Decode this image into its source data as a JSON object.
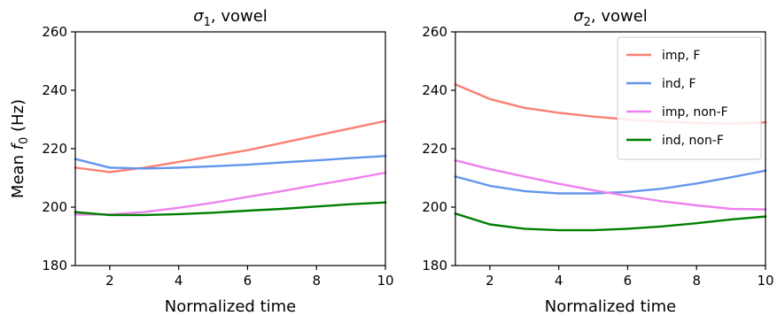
{
  "chart_data": [
    {
      "type": "line",
      "title": "σ1, vowel",
      "title_parts": {
        "sym": "σ",
        "sub": "1",
        "rest": ", vowel"
      },
      "xlabel": "Normalized time",
      "ylabel": "Mean f0 (Hz)",
      "ylabel_parts": {
        "pre": "Mean ",
        "sym": "f",
        "sub": "0",
        "post": " (Hz)"
      },
      "xlim": [
        1,
        10
      ],
      "ylim": [
        180,
        260
      ],
      "xticks": [
        2,
        4,
        6,
        8,
        10
      ],
      "yticks": [
        180,
        200,
        220,
        240,
        260
      ],
      "grid": false,
      "x": [
        1,
        2,
        3,
        4,
        5,
        6,
        7,
        8,
        9,
        10
      ],
      "series": [
        {
          "name": "imp, F",
          "color": "#fa8072",
          "values": [
            213.5,
            212.0,
            213.5,
            215.5,
            217.5,
            219.5,
            222.0,
            224.5,
            227.0,
            229.5
          ]
        },
        {
          "name": "ind, F",
          "color": "#6495ed",
          "values": [
            216.5,
            213.5,
            213.2,
            213.5,
            214.0,
            214.5,
            215.3,
            216.0,
            216.8,
            217.5
          ]
        },
        {
          "name": "imp, non-F",
          "color": "#ee82ee",
          "values": [
            197.5,
            197.5,
            198.3,
            199.8,
            201.5,
            203.5,
            205.5,
            207.6,
            209.6,
            211.8
          ]
        },
        {
          "name": "ind, non-F",
          "color": "#008000",
          "values": [
            198.3,
            197.3,
            197.3,
            197.6,
            198.1,
            198.8,
            199.4,
            200.2,
            201.0,
            201.6
          ]
        }
      ]
    },
    {
      "type": "line",
      "title": "σ2, vowel",
      "title_parts": {
        "sym": "σ",
        "sub": "2",
        "rest": ", vowel"
      },
      "xlabel": "Normalized time",
      "ylabel": "",
      "xlim": [
        1,
        10
      ],
      "ylim": [
        180,
        260
      ],
      "xticks": [
        2,
        4,
        6,
        8,
        10
      ],
      "yticks": [
        180,
        200,
        220,
        240,
        260
      ],
      "grid": false,
      "legend": "top-right",
      "x": [
        1,
        2,
        3,
        4,
        5,
        6,
        7,
        8,
        9,
        10
      ],
      "series": [
        {
          "name": "imp, F",
          "color": "#fa8072",
          "values": [
            242.0,
            237.0,
            234.0,
            232.3,
            231.0,
            230.0,
            229.3,
            228.8,
            228.6,
            229.0
          ]
        },
        {
          "name": "ind, F",
          "color": "#6495ed",
          "values": [
            210.5,
            207.3,
            205.5,
            204.7,
            204.7,
            205.2,
            206.3,
            208.1,
            210.2,
            212.5
          ]
        },
        {
          "name": "imp, non-F",
          "color": "#ee82ee",
          "values": [
            216.0,
            213.0,
            210.5,
            208.0,
            205.8,
            203.8,
            202.0,
            200.6,
            199.4,
            199.2
          ]
        },
        {
          "name": "ind, non-F",
          "color": "#008000",
          "values": [
            197.8,
            194.1,
            192.6,
            192.1,
            192.1,
            192.6,
            193.4,
            194.5,
            195.8,
            196.8
          ]
        }
      ]
    }
  ]
}
